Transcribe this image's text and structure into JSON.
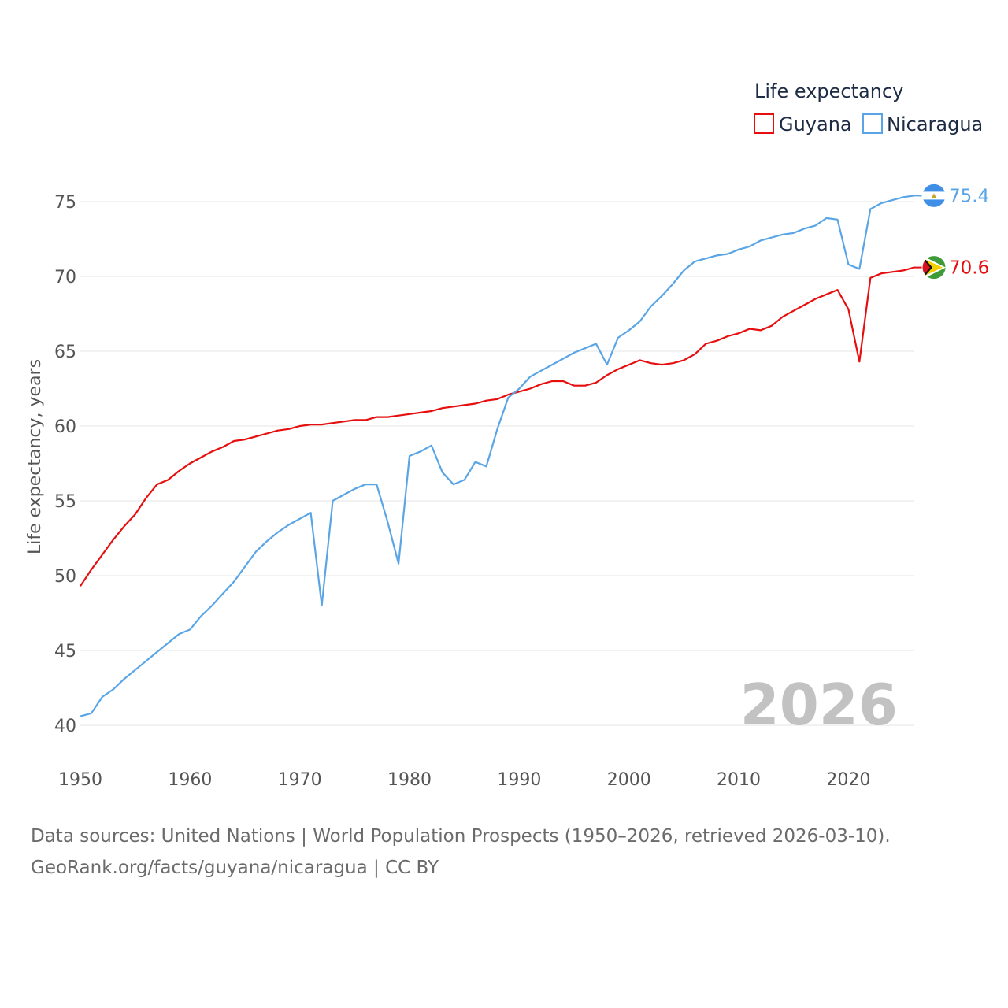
{
  "chart_data": {
    "type": "line",
    "title": "",
    "xlabel": "",
    "ylabel": "Life expectancy, years",
    "xlim": [
      1950,
      2026
    ],
    "ylim": [
      40,
      77
    ],
    "x_ticks": [
      "1950",
      "1960",
      "1970",
      "1980",
      "1990",
      "2000",
      "2010",
      "2020"
    ],
    "y_ticks": [
      "40",
      "45",
      "50",
      "55",
      "60",
      "65",
      "70",
      "75"
    ],
    "legend_title": "Life expectancy",
    "legend_position": "top-right",
    "year_watermark": "2026",
    "x": [
      1950,
      1951,
      1952,
      1953,
      1954,
      1955,
      1956,
      1957,
      1958,
      1959,
      1960,
      1961,
      1962,
      1963,
      1964,
      1965,
      1966,
      1967,
      1968,
      1969,
      1970,
      1971,
      1972,
      1973,
      1974,
      1975,
      1976,
      1977,
      1978,
      1979,
      1980,
      1981,
      1982,
      1983,
      1984,
      1985,
      1986,
      1987,
      1988,
      1989,
      1990,
      1991,
      1992,
      1993,
      1994,
      1995,
      1996,
      1997,
      1998,
      1999,
      2000,
      2001,
      2002,
      2003,
      2004,
      2005,
      2006,
      2007,
      2008,
      2009,
      2010,
      2011,
      2012,
      2013,
      2014,
      2015,
      2016,
      2017,
      2018,
      2019,
      2020,
      2021,
      2022,
      2023,
      2024,
      2025,
      2026
    ],
    "series": [
      {
        "name": "Guyana",
        "color": "#e60e0e",
        "end_label": "70.6",
        "flag_icon": "guyana-flag-icon",
        "values": [
          49.3,
          50.4,
          51.4,
          52.4,
          53.3,
          54.1,
          55.2,
          56.1,
          56.4,
          57.0,
          57.5,
          57.9,
          58.3,
          58.6,
          59.0,
          59.1,
          59.3,
          59.5,
          59.7,
          59.8,
          60.0,
          60.1,
          60.1,
          60.2,
          60.3,
          60.4,
          60.4,
          60.6,
          60.6,
          60.7,
          60.8,
          60.9,
          61.0,
          61.2,
          61.3,
          61.4,
          61.5,
          61.7,
          61.8,
          62.1,
          62.3,
          62.5,
          62.8,
          63.0,
          63.0,
          62.7,
          62.7,
          62.9,
          63.4,
          63.8,
          64.1,
          64.4,
          64.2,
          64.1,
          64.2,
          64.4,
          64.8,
          65.5,
          65.7,
          66.0,
          66.2,
          66.5,
          66.4,
          66.7,
          67.3,
          67.7,
          68.1,
          68.5,
          68.8,
          69.1,
          67.8,
          64.3,
          69.9,
          70.2,
          70.3,
          70.4,
          70.6
        ]
      },
      {
        "name": "Nicaragua",
        "color": "#5aa5e6",
        "end_label": "75.4",
        "flag_icon": "nicaragua-flag-icon",
        "values": [
          40.6,
          40.8,
          41.9,
          42.4,
          43.1,
          43.7,
          44.3,
          44.9,
          45.5,
          46.1,
          46.4,
          47.3,
          48.0,
          48.8,
          49.6,
          50.6,
          51.6,
          52.3,
          52.9,
          53.4,
          53.8,
          54.2,
          48.0,
          55.0,
          55.4,
          55.8,
          56.1,
          56.1,
          53.6,
          50.8,
          58.0,
          58.3,
          58.7,
          56.9,
          56.1,
          56.4,
          57.6,
          57.3,
          59.8,
          61.9,
          62.5,
          63.3,
          63.7,
          64.1,
          64.5,
          64.9,
          65.2,
          65.5,
          64.1,
          65.9,
          66.4,
          67.0,
          68.0,
          68.7,
          69.5,
          70.4,
          71.0,
          71.2,
          71.4,
          71.5,
          71.8,
          72.0,
          72.4,
          72.6,
          72.8,
          72.9,
          73.2,
          73.4,
          73.9,
          73.8,
          70.8,
          70.5,
          74.5,
          74.9,
          75.1,
          75.3,
          75.4
        ]
      }
    ]
  },
  "source": {
    "line1": "Data sources: United Nations | World Population Prospects (1950–2026, retrieved 2026-03-10).",
    "line2": "GeoRank.org/facts/guyana/nicaragua | CC BY"
  }
}
